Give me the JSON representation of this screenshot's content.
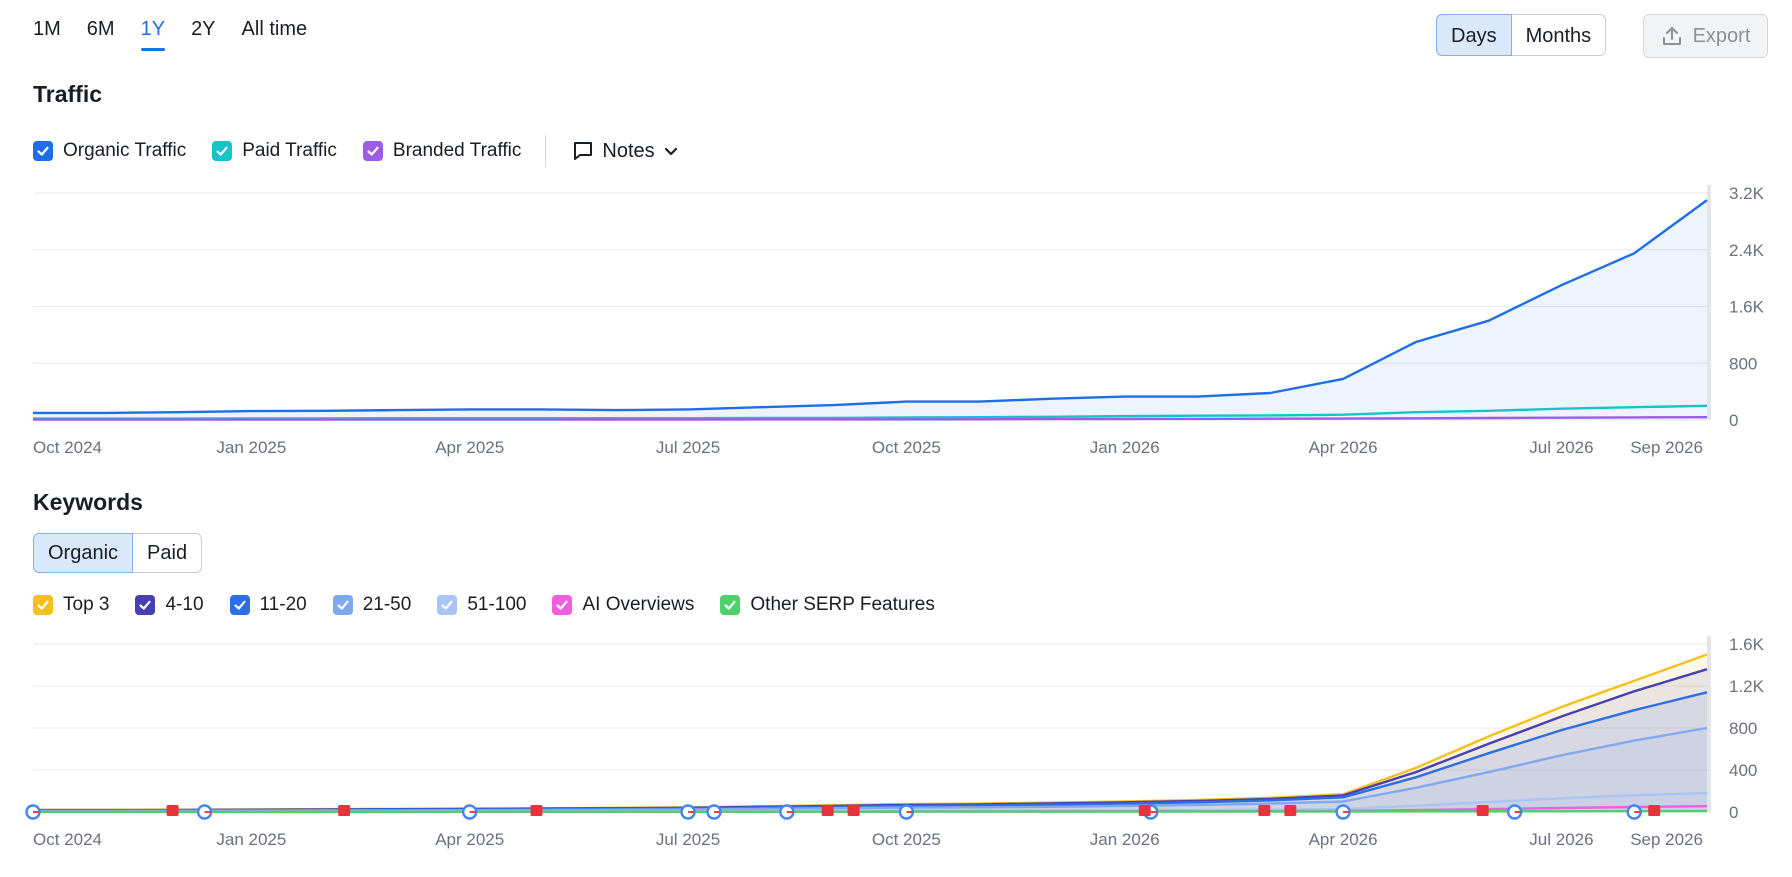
{
  "range_tabs": [
    {
      "label": "1M",
      "active": false
    },
    {
      "label": "6M",
      "active": false
    },
    {
      "label": "1Y",
      "active": true
    },
    {
      "label": "2Y",
      "active": false
    },
    {
      "label": "All time",
      "active": false
    }
  ],
  "granularity": {
    "days": "Days",
    "months": "Months",
    "selected": "Days"
  },
  "export_label": "Export",
  "traffic": {
    "title": "Traffic",
    "legend": [
      {
        "label": "Organic Traffic",
        "color": "#1f6ee6"
      },
      {
        "label": "Paid Traffic",
        "color": "#17c3c9"
      },
      {
        "label": "Branded Traffic",
        "color": "#9d5ce6"
      }
    ],
    "notes_label": "Notes"
  },
  "keywords": {
    "title": "Keywords",
    "tabs": [
      {
        "label": "Organic",
        "active": true
      },
      {
        "label": "Paid",
        "active": false
      }
    ],
    "legend": [
      {
        "label": "Top 3",
        "color": "#f7bf1e"
      },
      {
        "label": "4-10",
        "color": "#4640b3"
      },
      {
        "label": "11-20",
        "color": "#2c6ee6"
      },
      {
        "label": "21-50",
        "color": "#7fa8f0"
      },
      {
        "label": "51-100",
        "color": "#a9c4f5"
      },
      {
        "label": "AI Overviews",
        "color": "#ef5fe0"
      },
      {
        "label": "Other SERP Features",
        "color": "#4ed06a"
      }
    ]
  },
  "chart_data": [
    {
      "type": "line",
      "title": "Traffic",
      "x_labels": [
        "Oct 2024",
        "Jan 2025",
        "Apr 2025",
        "Jul 2025",
        "Oct 2025",
        "Jan 2026",
        "Apr 2026",
        "Jul 2026",
        "Sep 2026"
      ],
      "y_ticks": [
        "0",
        "800",
        "1.6K",
        "2.4K",
        "3.2K"
      ],
      "ylim": [
        0,
        3200
      ],
      "x": [
        "2024-10",
        "2024-11",
        "2024-12",
        "2025-01",
        "2025-02",
        "2025-03",
        "2025-04",
        "2025-05",
        "2025-06",
        "2025-07",
        "2025-08",
        "2025-09",
        "2025-10",
        "2025-11",
        "2025-12",
        "2026-01",
        "2026-02",
        "2026-03",
        "2026-04",
        "2026-05",
        "2026-06",
        "2026-07",
        "2026-08",
        "2026-09"
      ],
      "series": [
        {
          "name": "Organic Traffic",
          "values": [
            100,
            100,
            110,
            125,
            130,
            140,
            150,
            150,
            140,
            150,
            180,
            210,
            260,
            260,
            300,
            330,
            330,
            380,
            580,
            1100,
            1400,
            1900,
            2350,
            3100
          ]
        },
        {
          "name": "Paid Traffic",
          "values": [
            20,
            20,
            20,
            22,
            22,
            25,
            25,
            25,
            25,
            25,
            30,
            30,
            35,
            40,
            45,
            55,
            60,
            65,
            75,
            110,
            130,
            160,
            180,
            200
          ]
        },
        {
          "name": "Branded Traffic",
          "values": [
            5,
            5,
            5,
            5,
            6,
            6,
            6,
            6,
            7,
            7,
            8,
            8,
            9,
            10,
            12,
            14,
            16,
            18,
            20,
            24,
            28,
            32,
            36,
            40
          ]
        }
      ]
    },
    {
      "type": "area",
      "title": "Keywords",
      "x_labels": [
        "Oct 2024",
        "Jan 2025",
        "Apr 2025",
        "Jul 2025",
        "Oct 2025",
        "Jan 2026",
        "Apr 2026",
        "Jul 2026",
        "Sep 2026"
      ],
      "y_ticks": [
        "0",
        "400",
        "800",
        "1.2K",
        "1.6K"
      ],
      "ylim": [
        0,
        1600
      ],
      "x": [
        "2024-10",
        "2024-11",
        "2024-12",
        "2025-01",
        "2025-02",
        "2025-03",
        "2025-04",
        "2025-05",
        "2025-06",
        "2025-07",
        "2025-08",
        "2025-09",
        "2025-10",
        "2025-11",
        "2025-12",
        "2026-01",
        "2026-02",
        "2026-03",
        "2026-04",
        "2026-05",
        "2026-06",
        "2026-07",
        "2026-08",
        "2026-09"
      ],
      "series": [
        {
          "name": "Top 3",
          "values": [
            20,
            20,
            22,
            25,
            28,
            30,
            32,
            35,
            40,
            45,
            55,
            65,
            75,
            80,
            90,
            100,
            115,
            135,
            170,
            420,
            720,
            1000,
            1250,
            1500
          ]
        },
        {
          "name": "4-10",
          "values": [
            18,
            18,
            20,
            22,
            25,
            27,
            29,
            32,
            36,
            40,
            50,
            58,
            68,
            72,
            82,
            92,
            105,
            125,
            158,
            380,
            650,
            910,
            1150,
            1360
          ]
        },
        {
          "name": "11-20",
          "values": [
            15,
            15,
            16,
            18,
            20,
            22,
            24,
            26,
            30,
            34,
            42,
            50,
            58,
            62,
            70,
            80,
            92,
            110,
            140,
            330,
            560,
            780,
            970,
            1140
          ]
        },
        {
          "name": "21-50",
          "values": [
            10,
            10,
            11,
            12,
            14,
            15,
            17,
            19,
            22,
            25,
            30,
            36,
            42,
            45,
            50,
            58,
            68,
            80,
            100,
            230,
            380,
            540,
            680,
            800
          ]
        },
        {
          "name": "51-100",
          "values": [
            3,
            3,
            3,
            4,
            4,
            5,
            5,
            6,
            7,
            8,
            9,
            10,
            12,
            13,
            14,
            16,
            18,
            22,
            28,
            60,
            95,
            130,
            160,
            180
          ]
        },
        {
          "name": "AI Overviews",
          "values": [
            1,
            1,
            1,
            1,
            1,
            1,
            2,
            2,
            2,
            2,
            3,
            3,
            4,
            4,
            5,
            6,
            7,
            8,
            10,
            18,
            28,
            38,
            48,
            55
          ]
        },
        {
          "name": "Other SERP Features",
          "values": [
            2,
            2,
            2,
            2,
            2,
            2,
            3,
            3,
            3,
            3,
            3,
            3,
            4,
            4,
            4,
            4,
            5,
            5,
            5,
            6,
            6,
            7,
            8,
            9
          ]
        }
      ],
      "events_google": [
        "2024-10",
        "2024-12",
        "2025-04",
        "2025-07",
        "2025-07",
        "2025-08",
        "2025-10",
        "2026-01",
        "2026-04",
        "2026-06",
        "2026-08"
      ],
      "events_notes": [
        "2024-12",
        "2025-02",
        "2025-05",
        "2025-09",
        "2025-09",
        "2026-01",
        "2026-03",
        "2026-03",
        "2026-06",
        "2026-08"
      ]
    }
  ]
}
